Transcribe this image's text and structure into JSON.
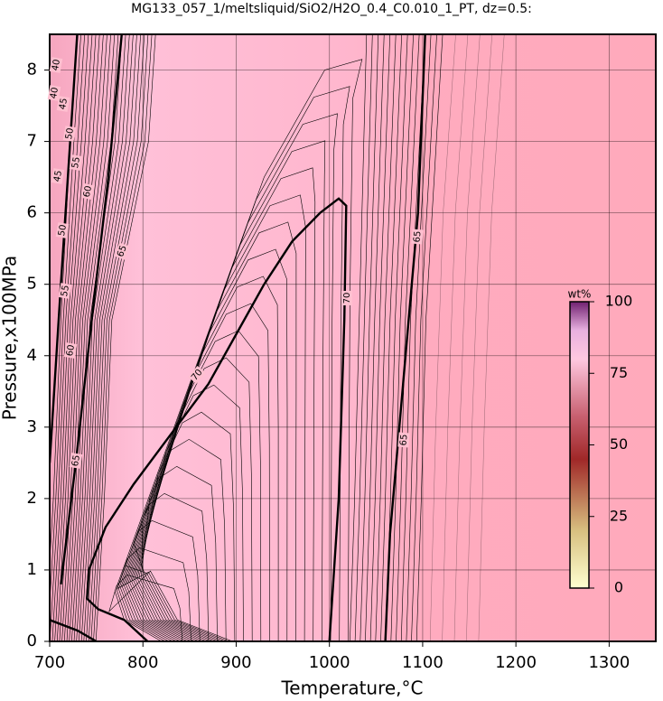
{
  "chart_data": {
    "type": "contour",
    "title": "MG133_057_1/meltsliquid/SiO2/H2O_0.4_C0.010_1_PT, dz=0.5:",
    "x_label": "Temperature,°C",
    "y_label": "Pressure,x100MPa",
    "xlim": [
      700,
      1350
    ],
    "xticks": [
      700,
      800,
      900,
      1000,
      1100,
      1200,
      1300
    ],
    "ylim": [
      0,
      8.5
    ],
    "yticks": [
      0,
      1,
      2,
      3,
      4,
      5,
      6,
      7,
      8
    ],
    "grid": true,
    "contour_labels": [
      40,
      40,
      45,
      50,
      55,
      60,
      45,
      50,
      55,
      60,
      65,
      65,
      70,
      70,
      65,
      65
    ],
    "colorbar": {
      "label": "wt%",
      "lim": [
        0,
        100
      ],
      "ticks": [
        0,
        25,
        50,
        75,
        100
      ]
    }
  }
}
